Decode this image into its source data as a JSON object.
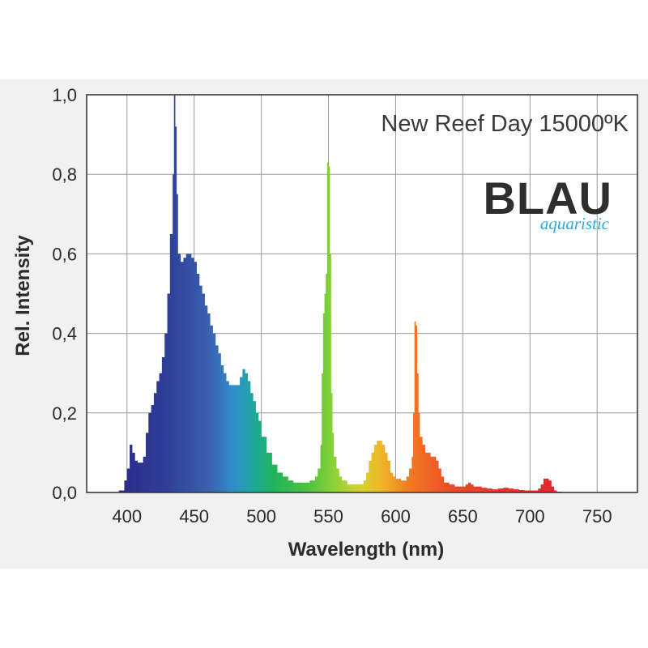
{
  "chart_data": {
    "type": "area",
    "title": "New Reef Day 15000ºK",
    "xlabel": "Wavelength (nm)",
    "ylabel": "Rel. Intensity",
    "xlim": [
      370,
      780
    ],
    "ylim": [
      0,
      1
    ],
    "xticks": [
      400,
      450,
      500,
      550,
      600,
      650,
      700,
      750
    ],
    "xtick_labels": [
      "400",
      "450",
      "500",
      "550",
      "600",
      "650",
      "700",
      "750"
    ],
    "yticks": [
      0,
      0.2,
      0.4,
      0.6,
      0.8,
      1.0
    ],
    "ytick_labels": [
      "0,0",
      "0,2",
      "0,4",
      "0,6",
      "0,8",
      "1,0"
    ],
    "grid": true,
    "fill": "spectral gradient (violet-blue to red)",
    "x": [
      390,
      394,
      398,
      400,
      402,
      404,
      406,
      408,
      410,
      412,
      414,
      416,
      418,
      420,
      422,
      424,
      426,
      428,
      430,
      432,
      434,
      435,
      436,
      437,
      438,
      440,
      442,
      444,
      446,
      448,
      450,
      452,
      454,
      456,
      458,
      460,
      462,
      464,
      466,
      468,
      470,
      472,
      474,
      476,
      478,
      480,
      482,
      484,
      486,
      488,
      490,
      492,
      494,
      496,
      498,
      500,
      504,
      508,
      512,
      516,
      520,
      524,
      528,
      532,
      536,
      540,
      542,
      544,
      545,
      546,
      547,
      548,
      549,
      550,
      551,
      552,
      553,
      554,
      556,
      558,
      560,
      564,
      568,
      572,
      576,
      578,
      580,
      582,
      584,
      586,
      588,
      590,
      592,
      594,
      596,
      598,
      600,
      604,
      608,
      610,
      612,
      613,
      614,
      615,
      616,
      617,
      618,
      620,
      622,
      624,
      626,
      628,
      630,
      632,
      634,
      636,
      640,
      644,
      648,
      650,
      652,
      654,
      656,
      658,
      660,
      664,
      668,
      672,
      676,
      680,
      684,
      688,
      692,
      696,
      700,
      704,
      706,
      708,
      710,
      712,
      714,
      716,
      718,
      720,
      724,
      728,
      740,
      756
    ],
    "values": [
      0.0,
      0.005,
      0.03,
      0.06,
      0.12,
      0.1,
      0.08,
      0.075,
      0.075,
      0.09,
      0.15,
      0.2,
      0.22,
      0.25,
      0.28,
      0.3,
      0.34,
      0.4,
      0.5,
      0.65,
      0.8,
      1.0,
      0.92,
      0.75,
      0.6,
      0.58,
      0.59,
      0.6,
      0.6,
      0.59,
      0.58,
      0.55,
      0.52,
      0.5,
      0.47,
      0.45,
      0.42,
      0.4,
      0.37,
      0.35,
      0.32,
      0.3,
      0.28,
      0.27,
      0.27,
      0.27,
      0.27,
      0.29,
      0.31,
      0.3,
      0.28,
      0.25,
      0.23,
      0.2,
      0.18,
      0.14,
      0.1,
      0.07,
      0.05,
      0.04,
      0.03,
      0.025,
      0.025,
      0.025,
      0.03,
      0.04,
      0.06,
      0.12,
      0.3,
      0.45,
      0.5,
      0.55,
      0.83,
      0.82,
      0.6,
      0.25,
      0.15,
      0.09,
      0.06,
      0.04,
      0.03,
      0.02,
      0.02,
      0.02,
      0.03,
      0.05,
      0.08,
      0.1,
      0.12,
      0.13,
      0.13,
      0.12,
      0.1,
      0.08,
      0.05,
      0.04,
      0.035,
      0.03,
      0.04,
      0.06,
      0.09,
      0.2,
      0.43,
      0.42,
      0.3,
      0.2,
      0.14,
      0.12,
      0.1,
      0.1,
      0.09,
      0.09,
      0.08,
      0.06,
      0.04,
      0.025,
      0.02,
      0.015,
      0.015,
      0.015,
      0.02,
      0.025,
      0.02,
      0.015,
      0.015,
      0.012,
      0.01,
      0.008,
      0.01,
      0.012,
      0.01,
      0.008,
      0.006,
      0.005,
      0.005,
      0.005,
      0.01,
      0.02,
      0.035,
      0.035,
      0.03,
      0.015,
      0.005,
      0.002,
      0.001,
      0.0,
      0.0,
      0.0
    ]
  },
  "logo": {
    "brand": "BLAU",
    "sub": "aquaristic",
    "brand_color": "#2e2e2e",
    "sub_color": "#2aa8e0"
  },
  "colors": {
    "band_background": "#f1f1f1",
    "plot_background": "#ffffff",
    "grid": "#9a9a9a",
    "axis": "#3a3a3a"
  }
}
